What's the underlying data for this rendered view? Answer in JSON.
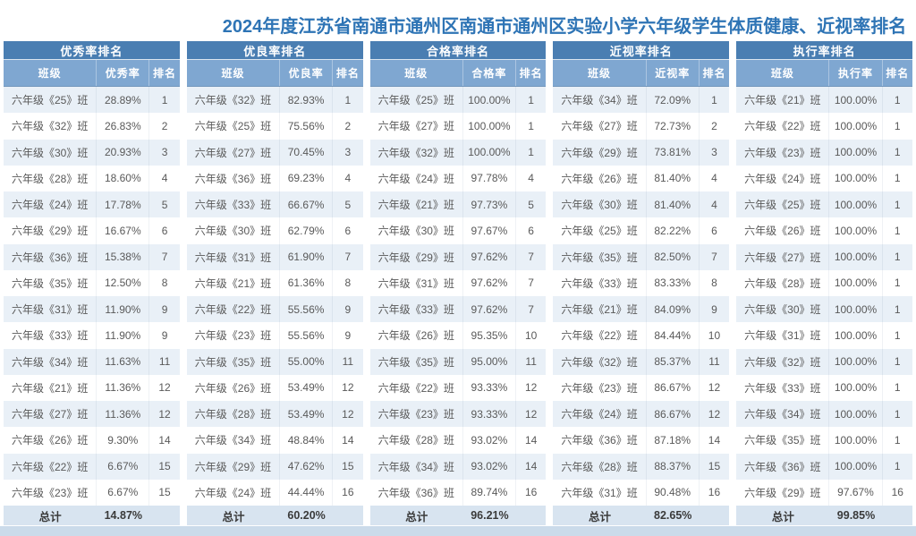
{
  "title": "2024年度江苏省南通市通州区南通市通州区实验小学六年级学生体质健康、近视率排名",
  "colors": {
    "title_text": "#2E74B5",
    "table_header_bg": "#4A7EB2",
    "column_header_bg": "#7FA7D1",
    "row_alt_bg": "#E9F0F7",
    "total_row_bg": "#D8E4F0",
    "footer_bar_bg": "#CBDBEA"
  },
  "chart_data": [
    {
      "type": "table",
      "title": "优秀率排名",
      "columns": [
        "班级",
        "优秀率",
        "排名"
      ],
      "rows": [
        [
          "六年级《25》班",
          "28.89%",
          "1"
        ],
        [
          "六年级《32》班",
          "26.83%",
          "2"
        ],
        [
          "六年级《30》班",
          "20.93%",
          "3"
        ],
        [
          "六年级《28》班",
          "18.60%",
          "4"
        ],
        [
          "六年级《24》班",
          "17.78%",
          "5"
        ],
        [
          "六年级《29》班",
          "16.67%",
          "6"
        ],
        [
          "六年级《36》班",
          "15.38%",
          "7"
        ],
        [
          "六年级《35》班",
          "12.50%",
          "8"
        ],
        [
          "六年级《31》班",
          "11.90%",
          "9"
        ],
        [
          "六年级《33》班",
          "11.90%",
          "9"
        ],
        [
          "六年级《34》班",
          "11.63%",
          "11"
        ],
        [
          "六年级《21》班",
          "11.36%",
          "12"
        ],
        [
          "六年级《27》班",
          "11.36%",
          "12"
        ],
        [
          "六年级《26》班",
          "9.30%",
          "14"
        ],
        [
          "六年级《22》班",
          "6.67%",
          "15"
        ],
        [
          "六年级《23》班",
          "6.67%",
          "15"
        ]
      ],
      "total_label": "总计",
      "total_value": "14.87%"
    },
    {
      "type": "table",
      "title": "优良率排名",
      "columns": [
        "班级",
        "优良率",
        "排名"
      ],
      "rows": [
        [
          "六年级《32》班",
          "82.93%",
          "1"
        ],
        [
          "六年级《25》班",
          "75.56%",
          "2"
        ],
        [
          "六年级《27》班",
          "70.45%",
          "3"
        ],
        [
          "六年级《36》班",
          "69.23%",
          "4"
        ],
        [
          "六年级《33》班",
          "66.67%",
          "5"
        ],
        [
          "六年级《30》班",
          "62.79%",
          "6"
        ],
        [
          "六年级《31》班",
          "61.90%",
          "7"
        ],
        [
          "六年级《21》班",
          "61.36%",
          "8"
        ],
        [
          "六年级《22》班",
          "55.56%",
          "9"
        ],
        [
          "六年级《23》班",
          "55.56%",
          "9"
        ],
        [
          "六年级《35》班",
          "55.00%",
          "11"
        ],
        [
          "六年级《26》班",
          "53.49%",
          "12"
        ],
        [
          "六年级《28》班",
          "53.49%",
          "12"
        ],
        [
          "六年级《34》班",
          "48.84%",
          "14"
        ],
        [
          "六年级《29》班",
          "47.62%",
          "15"
        ],
        [
          "六年级《24》班",
          "44.44%",
          "16"
        ]
      ],
      "total_label": "总计",
      "total_value": "60.20%"
    },
    {
      "type": "table",
      "title": "合格率排名",
      "columns": [
        "班级",
        "合格率",
        "排名"
      ],
      "rows": [
        [
          "六年级《25》班",
          "100.00%",
          "1"
        ],
        [
          "六年级《27》班",
          "100.00%",
          "1"
        ],
        [
          "六年级《32》班",
          "100.00%",
          "1"
        ],
        [
          "六年级《24》班",
          "97.78%",
          "4"
        ],
        [
          "六年级《21》班",
          "97.73%",
          "5"
        ],
        [
          "六年级《30》班",
          "97.67%",
          "6"
        ],
        [
          "六年级《29》班",
          "97.62%",
          "7"
        ],
        [
          "六年级《31》班",
          "97.62%",
          "7"
        ],
        [
          "六年级《33》班",
          "97.62%",
          "7"
        ],
        [
          "六年级《26》班",
          "95.35%",
          "10"
        ],
        [
          "六年级《35》班",
          "95.00%",
          "11"
        ],
        [
          "六年级《22》班",
          "93.33%",
          "12"
        ],
        [
          "六年级《23》班",
          "93.33%",
          "12"
        ],
        [
          "六年级《28》班",
          "93.02%",
          "14"
        ],
        [
          "六年级《34》班",
          "93.02%",
          "14"
        ],
        [
          "六年级《36》班",
          "89.74%",
          "16"
        ]
      ],
      "total_label": "总计",
      "total_value": "96.21%"
    },
    {
      "type": "table",
      "title": "近视率排名",
      "columns": [
        "班级",
        "近视率",
        "排名"
      ],
      "rows": [
        [
          "六年级《34》班",
          "72.09%",
          "1"
        ],
        [
          "六年级《27》班",
          "72.73%",
          "2"
        ],
        [
          "六年级《29》班",
          "73.81%",
          "3"
        ],
        [
          "六年级《26》班",
          "81.40%",
          "4"
        ],
        [
          "六年级《30》班",
          "81.40%",
          "4"
        ],
        [
          "六年级《25》班",
          "82.22%",
          "6"
        ],
        [
          "六年级《35》班",
          "82.50%",
          "7"
        ],
        [
          "六年级《33》班",
          "83.33%",
          "8"
        ],
        [
          "六年级《21》班",
          "84.09%",
          "9"
        ],
        [
          "六年级《22》班",
          "84.44%",
          "10"
        ],
        [
          "六年级《32》班",
          "85.37%",
          "11"
        ],
        [
          "六年级《23》班",
          "86.67%",
          "12"
        ],
        [
          "六年级《24》班",
          "86.67%",
          "12"
        ],
        [
          "六年级《36》班",
          "87.18%",
          "14"
        ],
        [
          "六年级《28》班",
          "88.37%",
          "15"
        ],
        [
          "六年级《31》班",
          "90.48%",
          "16"
        ]
      ],
      "total_label": "总计",
      "total_value": "82.65%"
    },
    {
      "type": "table",
      "title": "执行率排名",
      "columns": [
        "班级",
        "执行率",
        "排名"
      ],
      "rows": [
        [
          "六年级《21》班",
          "100.00%",
          "1"
        ],
        [
          "六年级《22》班",
          "100.00%",
          "1"
        ],
        [
          "六年级《23》班",
          "100.00%",
          "1"
        ],
        [
          "六年级《24》班",
          "100.00%",
          "1"
        ],
        [
          "六年级《25》班",
          "100.00%",
          "1"
        ],
        [
          "六年级《26》班",
          "100.00%",
          "1"
        ],
        [
          "六年级《27》班",
          "100.00%",
          "1"
        ],
        [
          "六年级《28》班",
          "100.00%",
          "1"
        ],
        [
          "六年级《30》班",
          "100.00%",
          "1"
        ],
        [
          "六年级《31》班",
          "100.00%",
          "1"
        ],
        [
          "六年级《32》班",
          "100.00%",
          "1"
        ],
        [
          "六年级《33》班",
          "100.00%",
          "1"
        ],
        [
          "六年级《34》班",
          "100.00%",
          "1"
        ],
        [
          "六年级《35》班",
          "100.00%",
          "1"
        ],
        [
          "六年级《36》班",
          "100.00%",
          "1"
        ],
        [
          "六年级《29》班",
          "97.67%",
          "16"
        ]
      ],
      "total_label": "总计",
      "total_value": "99.85%"
    }
  ]
}
